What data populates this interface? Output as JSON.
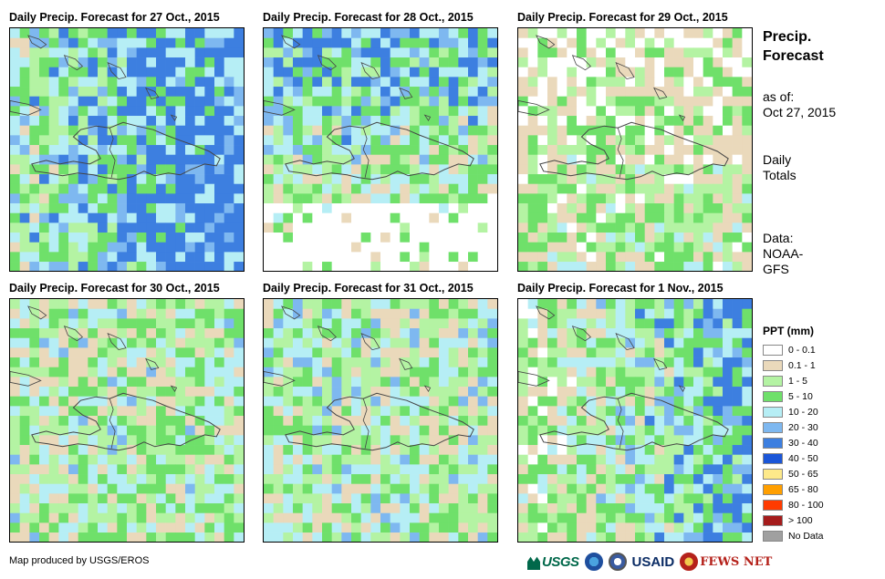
{
  "panels": [
    {
      "title": "Daily Precip. Forecast for 27 Oct., 2015",
      "wetness": 0.9,
      "wet_side": "east"
    },
    {
      "title": "Daily Precip. Forecast for 28 Oct., 2015",
      "wetness": 0.55,
      "wet_side": "north"
    },
    {
      "title": "Daily Precip. Forecast for 29 Oct., 2015",
      "wetness": 0.25,
      "wet_side": "south"
    },
    {
      "title": "Daily Precip. Forecast for 30 Oct., 2015",
      "wetness": 0.45,
      "wet_side": "none"
    },
    {
      "title": "Daily Precip. Forecast for 31 Oct., 2015",
      "wetness": 0.5,
      "wet_side": "none"
    },
    {
      "title": "Daily Precip. Forecast for 1 Nov., 2015",
      "wetness": 0.55,
      "wet_side": "east"
    }
  ],
  "info": {
    "title_line1": "Precip.",
    "title_line2": "Forecast",
    "asof_label": "as of:",
    "asof_date": "Oct 27, 2015",
    "daily_line1": "Daily",
    "daily_line2": "Totals",
    "data_line1": "Data:",
    "data_line2": "NOAA-",
    "data_line3": "GFS"
  },
  "legend": {
    "title": "PPT (mm)",
    "items": [
      {
        "label": "0 - 0.1",
        "color": "#ffffff"
      },
      {
        "label": "0.1 - 1",
        "color": "#ead9bb"
      },
      {
        "label": "1 - 5",
        "color": "#b4f3a3"
      },
      {
        "label": "5 - 10",
        "color": "#6fe06a"
      },
      {
        "label": "10 - 20",
        "color": "#b6eef5"
      },
      {
        "label": "20 - 30",
        "color": "#7eb8f0"
      },
      {
        "label": "30 - 40",
        "color": "#3d7fe0"
      },
      {
        "label": "40 - 50",
        "color": "#1b56d8"
      },
      {
        "label": "50 - 65",
        "color": "#fde98a"
      },
      {
        "label": "65 - 80",
        "color": "#ff9f00"
      },
      {
        "label": "80 - 100",
        "color": "#ff3b00"
      },
      {
        "label": "> 100",
        "color": "#a51c1c"
      },
      {
        "label": "No Data",
        "color": "#a0a0a0"
      }
    ]
  },
  "credit": "Map produced by USGS/EROS",
  "logos": {
    "usgs": "USGS",
    "usaid": "USAID",
    "fews": "FEWS NET"
  }
}
